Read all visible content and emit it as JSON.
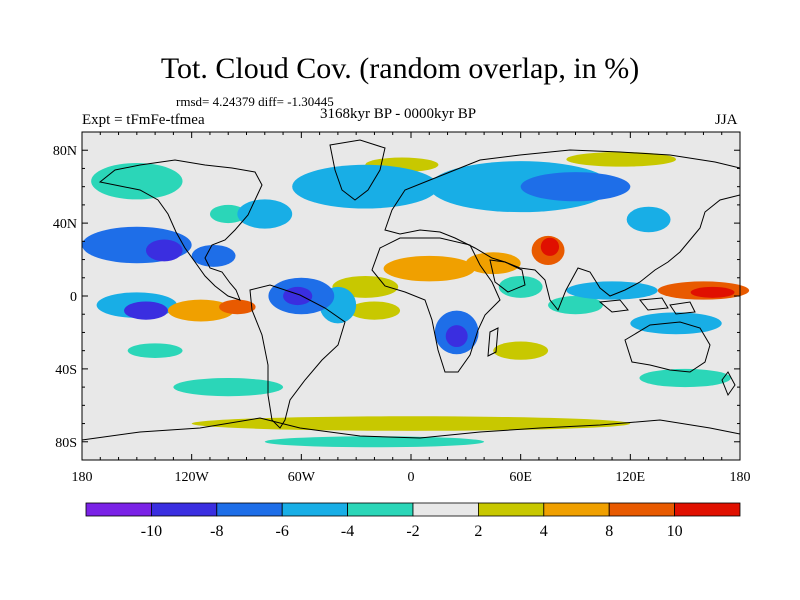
{
  "title": "Tot. Cloud Cov. (random overlap, in %)",
  "stats_line": "rmsd= 4.24379 diff= -1.30445",
  "left_label": "Expt = tFmFe-tfmea",
  "center_label": "3168kyr BP - 0000kyr BP",
  "right_label": "JJA",
  "chart_data": {
    "type": "heatmap",
    "projection": "cylindrical-equidistant",
    "xlim": [
      -180,
      180
    ],
    "ylim": [
      -90,
      90
    ],
    "x_tick_labels": [
      {
        "value": -180,
        "label": "180"
      },
      {
        "value": -120,
        "label": "120W"
      },
      {
        "value": -60,
        "label": "60W"
      },
      {
        "value": 0,
        "label": "0"
      },
      {
        "value": 60,
        "label": "60E"
      },
      {
        "value": 120,
        "label": "120E"
      },
      {
        "value": 180,
        "label": "180"
      }
    ],
    "y_tick_labels": [
      {
        "value": 80,
        "label": "80N"
      },
      {
        "value": 40,
        "label": "40N"
      },
      {
        "value": 0,
        "label": "0"
      },
      {
        "value": -40,
        "label": "40S"
      },
      {
        "value": -80,
        "label": "80S"
      }
    ],
    "colorbar": {
      "levels": [
        -10,
        -8,
        -6,
        -4,
        -2,
        2,
        4,
        8,
        10
      ],
      "level_labels": [
        "-10",
        "-8",
        "-6",
        "-4",
        "-2",
        "2",
        "4",
        "8",
        "10"
      ],
      "colors": [
        "#7a22e6",
        "#3a2ee0",
        "#1e6ee8",
        "#18aee6",
        "#2bd6b8",
        "#e8e8e8",
        "#c8c800",
        "#f0a000",
        "#e85a00",
        "#e01000"
      ]
    },
    "anomaly_regions": [
      {
        "lon": -150,
        "lat": 28,
        "rlon": 30,
        "rlat": 10,
        "value": -7
      },
      {
        "lon": -135,
        "lat": 25,
        "rlon": 10,
        "rlat": 6,
        "value": -10
      },
      {
        "lon": -108,
        "lat": 22,
        "rlon": 12,
        "rlat": 6,
        "value": -8
      },
      {
        "lon": -150,
        "lat": -5,
        "rlon": 22,
        "rlat": 7,
        "value": -5
      },
      {
        "lon": -145,
        "lat": -8,
        "rlon": 12,
        "rlat": 5,
        "value": -10
      },
      {
        "lon": -115,
        "lat": -8,
        "rlon": 18,
        "rlat": 6,
        "value": 5
      },
      {
        "lon": -95,
        "lat": -6,
        "rlon": 10,
        "rlat": 4,
        "value": 8
      },
      {
        "lon": -60,
        "lat": 0,
        "rlon": 18,
        "rlat": 10,
        "value": -7
      },
      {
        "lon": -62,
        "lat": 0,
        "rlon": 8,
        "rlat": 5,
        "value": -10
      },
      {
        "lon": -40,
        "lat": -5,
        "rlon": 10,
        "rlat": 10,
        "value": -6
      },
      {
        "lon": -25,
        "lat": 5,
        "rlon": 18,
        "rlat": 6,
        "value": 3
      },
      {
        "lon": -20,
        "lat": -8,
        "rlon": 14,
        "rlat": 5,
        "value": 3
      },
      {
        "lon": 25,
        "lat": -20,
        "rlon": 12,
        "rlat": 12,
        "value": -8
      },
      {
        "lon": 25,
        "lat": -22,
        "rlon": 6,
        "rlat": 6,
        "value": -10
      },
      {
        "lon": 10,
        "lat": 15,
        "rlon": 25,
        "rlat": 7,
        "value": 5
      },
      {
        "lon": 45,
        "lat": 18,
        "rlon": 15,
        "rlat": 6,
        "value": 6
      },
      {
        "lon": 75,
        "lat": 25,
        "rlon": 9,
        "rlat": 8,
        "value": 9
      },
      {
        "lon": 76,
        "lat": 27,
        "rlon": 5,
        "rlat": 5,
        "value": 11
      },
      {
        "lon": 160,
        "lat": 3,
        "rlon": 25,
        "rlat": 5,
        "value": 9
      },
      {
        "lon": 165,
        "lat": 2,
        "rlon": 12,
        "rlat": 3,
        "value": 11
      },
      {
        "lon": 110,
        "lat": 3,
        "rlon": 25,
        "rlat": 5,
        "value": -6
      },
      {
        "lon": 145,
        "lat": -15,
        "rlon": 25,
        "rlat": 6,
        "value": -5
      },
      {
        "lon": 90,
        "lat": -5,
        "rlon": 15,
        "rlat": 5,
        "value": -4
      },
      {
        "lon": 60,
        "lat": 5,
        "rlon": 12,
        "rlat": 6,
        "value": -4
      },
      {
        "lon": 60,
        "lat": -30,
        "rlon": 15,
        "rlat": 5,
        "value": 3
      },
      {
        "lon": 60,
        "lat": 60,
        "rlon": 50,
        "rlat": 14,
        "value": -6
      },
      {
        "lon": 90,
        "lat": 60,
        "rlon": 30,
        "rlat": 8,
        "value": -8
      },
      {
        "lon": -25,
        "lat": 60,
        "rlon": 40,
        "rlat": 12,
        "value": -5
      },
      {
        "lon": -150,
        "lat": 63,
        "rlon": 25,
        "rlat": 10,
        "value": -4
      },
      {
        "lon": -5,
        "lat": 72,
        "rlon": 20,
        "rlat": 4,
        "value": 3
      },
      {
        "lon": 115,
        "lat": 75,
        "rlon": 30,
        "rlat": 4,
        "value": 3
      },
      {
        "lon": 130,
        "lat": 42,
        "rlon": 12,
        "rlat": 7,
        "value": -5
      },
      {
        "lon": 0,
        "lat": -70,
        "rlon": 120,
        "rlat": 4,
        "value": 3
      },
      {
        "lon": -20,
        "lat": -80,
        "rlon": 60,
        "rlat": 3,
        "value": -3
      },
      {
        "lon": -100,
        "lat": -50,
        "rlon": 30,
        "rlat": 5,
        "value": -3
      },
      {
        "lon": 150,
        "lat": -45,
        "rlon": 25,
        "rlat": 5,
        "value": -3
      },
      {
        "lon": -140,
        "lat": -30,
        "rlon": 15,
        "rlat": 4,
        "value": -3
      },
      {
        "lon": -80,
        "lat": 45,
        "rlon": 15,
        "rlat": 8,
        "value": -5
      },
      {
        "lon": -100,
        "lat": 45,
        "rlon": 10,
        "rlat": 5,
        "value": -3
      }
    ]
  }
}
